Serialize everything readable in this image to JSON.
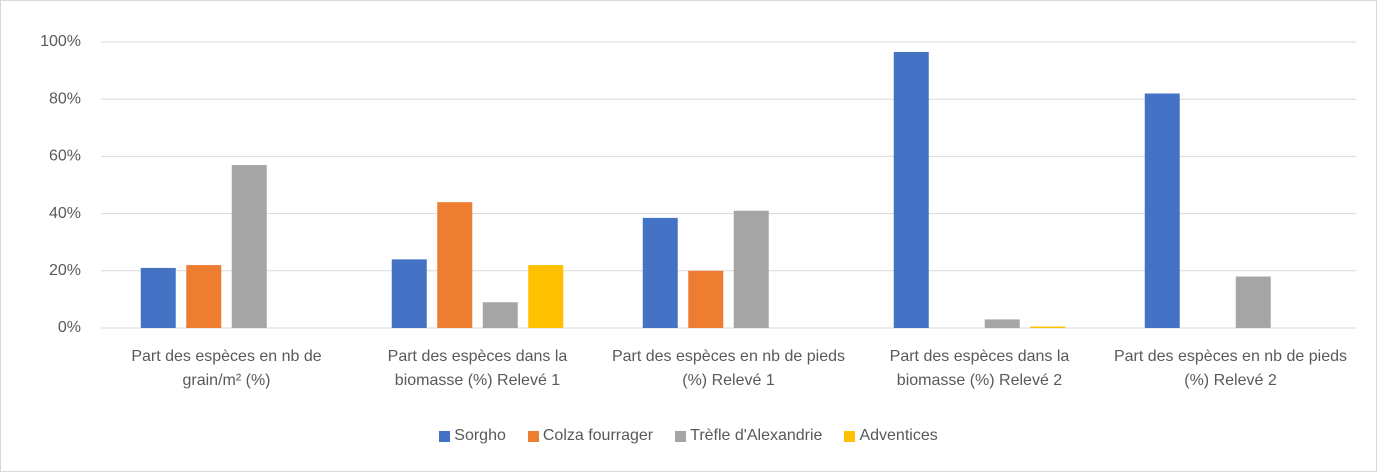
{
  "chart_data": {
    "type": "bar",
    "categories": [
      "Part des espèces en nb de grain/m² (%)",
      "Part des espèces dans la biomasse (%) Relevé 1",
      "Part des espèces en nb de pieds (%) Relevé 1",
      "Part des espèces dans la biomasse (%) Relevé 2",
      "Part des espèces en nb de pieds (%) Relevé 2"
    ],
    "series": [
      {
        "name": "Sorgho",
        "color": "#4472c4",
        "values": [
          21,
          24,
          38.5,
          96.5,
          82
        ]
      },
      {
        "name": "Colza fourrager",
        "color": "#ed7d31",
        "values": [
          22,
          44,
          20,
          0,
          0
        ]
      },
      {
        "name": "Trèfle d'Alexandrie",
        "color": "#a5a5a5",
        "values": [
          57,
          9,
          41,
          3,
          18
        ]
      },
      {
        "name": "Adventices",
        "color": "#ffc000",
        "values": [
          0,
          22,
          0,
          0.5,
          0
        ]
      }
    ],
    "ylim": [
      0,
      100
    ],
    "yticks": [
      {
        "value": 0,
        "label": "0%"
      },
      {
        "value": 20,
        "label": "20%"
      },
      {
        "value": 40,
        "label": "40%"
      },
      {
        "value": 60,
        "label": "60%"
      },
      {
        "value": 80,
        "label": "80%"
      },
      {
        "value": 100,
        "label": "100%"
      }
    ],
    "grid": true,
    "legend": "bottom"
  }
}
